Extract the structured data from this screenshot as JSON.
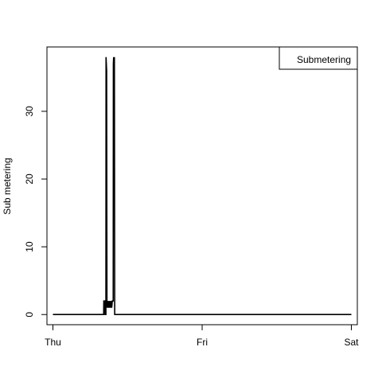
{
  "chart_data": {
    "type": "line",
    "title": "",
    "xlabel": "",
    "ylabel": "Sub metering",
    "x_ticks": [
      {
        "label": "Thu",
        "value": 0
      },
      {
        "label": "Fri",
        "value": 1
      },
      {
        "label": "Sat",
        "value": 2
      }
    ],
    "y_ticks": [
      0,
      10,
      20,
      30
    ],
    "xlim": [
      -0.04,
      2.04
    ],
    "ylim": [
      -1.5,
      39.5
    ],
    "grid": false,
    "legend": {
      "placement": "top-right",
      "entries": [
        "Submetering"
      ]
    },
    "series": [
      {
        "name": "Submetering",
        "color": "#000000",
        "points": [
          [
            0.0,
            0
          ],
          [
            0.34,
            0
          ],
          [
            0.341,
            2
          ],
          [
            0.348,
            2
          ],
          [
            0.349,
            0
          ],
          [
            0.355,
            0
          ],
          [
            0.356,
            38
          ],
          [
            0.358,
            37
          ],
          [
            0.36,
            36
          ],
          [
            0.362,
            2
          ],
          [
            0.364,
            1
          ],
          [
            0.366,
            2
          ],
          [
            0.37,
            1
          ],
          [
            0.374,
            2
          ],
          [
            0.378,
            1
          ],
          [
            0.382,
            2
          ],
          [
            0.386,
            1
          ],
          [
            0.39,
            2
          ],
          [
            0.394,
            1
          ],
          [
            0.398,
            2
          ],
          [
            0.404,
            2
          ],
          [
            0.405,
            37
          ],
          [
            0.407,
            38
          ],
          [
            0.409,
            37
          ],
          [
            0.412,
            38
          ],
          [
            0.414,
            0
          ],
          [
            0.43,
            0
          ],
          [
            2.0,
            0
          ]
        ]
      }
    ]
  }
}
